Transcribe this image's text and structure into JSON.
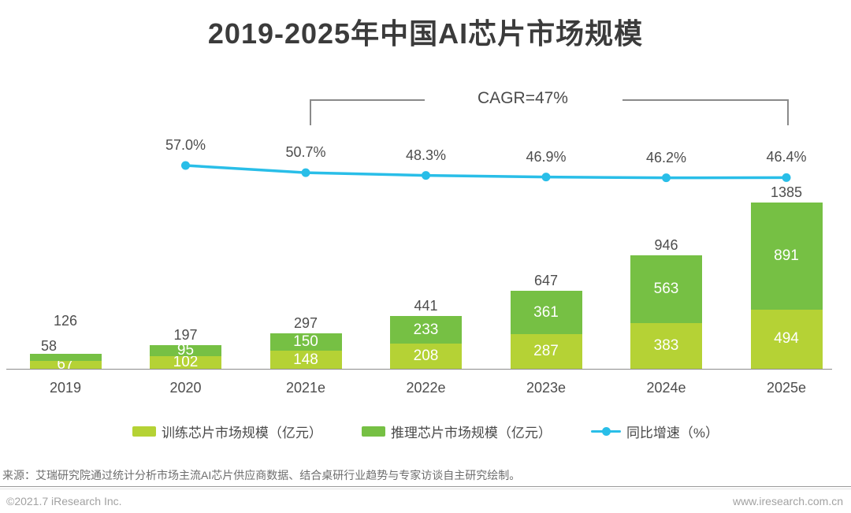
{
  "title": "2019-2025年中国AI芯片市场规模",
  "chart_data": {
    "type": "stacked-bar-with-line",
    "title": "2019-2025年中国AI芯片市场规模",
    "unit": "亿元",
    "annotation": "CAGR=47%",
    "annotation_span": [
      "2021e",
      "2025e"
    ],
    "categories": [
      "2019",
      "2020",
      "2021e",
      "2022e",
      "2023e",
      "2024e",
      "2025e"
    ],
    "series": [
      {
        "name": "训练芯片市场规模（亿元）",
        "role": "bar-bottom",
        "color": "#b5d235",
        "values": [
          67,
          102,
          148,
          208,
          287,
          383,
          494
        ]
      },
      {
        "name": "推理芯片市场规模（亿元）",
        "role": "bar-top",
        "color": "#76c044",
        "values": [
          58,
          95,
          150,
          233,
          361,
          563,
          891
        ]
      }
    ],
    "totals": [
      126,
      197,
      297,
      441,
      647,
      946,
      1385
    ],
    "line_series": {
      "name": "同比增速（%）",
      "color": "#29bee8",
      "categories": [
        "2020",
        "2021e",
        "2022e",
        "2023e",
        "2024e",
        "2025e"
      ],
      "values": [
        57.0,
        50.7,
        48.3,
        46.9,
        46.2,
        46.4
      ],
      "labels": [
        "57.0%",
        "50.7%",
        "48.3%",
        "46.9%",
        "46.2%",
        "46.4%"
      ]
    },
    "legend_position": "bottom",
    "grid": false
  },
  "source_note": "来源：艾瑞研究院通过统计分析市场主流AI芯片供应商数据、结合桌研行业趋势与专家访谈自主研究绘制。",
  "footer": {
    "copyright": "©2021.7 iResearch Inc.",
    "website": "www.iresearch.com.cn"
  }
}
